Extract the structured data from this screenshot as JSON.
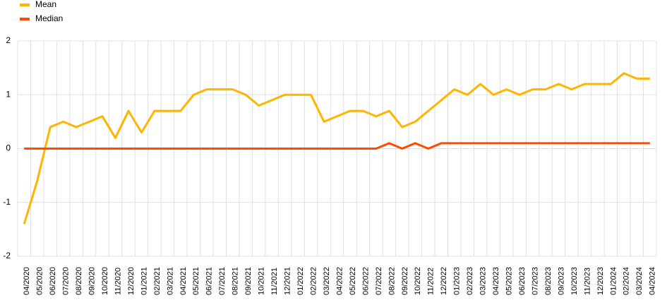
{
  "chart_data": {
    "type": "line",
    "categories": [
      "04/2020",
      "05/2020",
      "06/2020",
      "07/2020",
      "08/2020",
      "09/2020",
      "10/2020",
      "11/2020",
      "12/2020",
      "01/2021",
      "02/2021",
      "03/2021",
      "04/2021",
      "05/2021",
      "06/2021",
      "07/2021",
      "08/2021",
      "09/2021",
      "10/2021",
      "11/2021",
      "12/2021",
      "01/2022",
      "02/2022",
      "03/2022",
      "04/2022",
      "05/2022",
      "06/2022",
      "07/2022",
      "08/2022",
      "09/2022",
      "10/2022",
      "11/2022",
      "12/2022",
      "01/2023",
      "02/2023",
      "03/2023",
      "04/2023",
      "05/2023",
      "06/2023",
      "07/2023",
      "08/2023",
      "09/2023",
      "10/2023",
      "11/2023",
      "12/2023",
      "01/2024",
      "02/2024",
      "03/2024",
      "04/2024"
    ],
    "series": [
      {
        "name": "Mean",
        "color": "#ffb400",
        "values": [
          -1.4,
          -0.6,
          0.4,
          0.5,
          0.4,
          0.5,
          0.6,
          0.2,
          0.7,
          0.3,
          0.7,
          0.7,
          0.7,
          1.0,
          1.1,
          1.1,
          1.1,
          1.0,
          0.8,
          0.9,
          1.0,
          1.0,
          1.0,
          0.5,
          0.6,
          0.7,
          0.7,
          0.6,
          0.7,
          0.4,
          0.5,
          0.7,
          0.9,
          1.1,
          1.0,
          1.2,
          1.0,
          1.1,
          1.0,
          1.1,
          1.1,
          1.2,
          1.1,
          1.2,
          1.2,
          1.2,
          1.4,
          1.3,
          1.3
        ]
      },
      {
        "name": "Median",
        "color": "#ff4b00",
        "values": [
          0,
          0,
          0,
          0,
          0,
          0,
          0,
          0,
          0,
          0,
          0,
          0,
          0,
          0,
          0,
          0,
          0,
          0,
          0,
          0,
          0,
          0,
          0,
          0,
          0,
          0,
          0,
          0,
          0.1,
          0,
          0.1,
          0,
          0.1,
          0.1,
          0.1,
          0.1,
          0.1,
          0.1,
          0.1,
          0.1,
          0.1,
          0.1,
          0.1,
          0.1,
          0.1,
          0.1,
          0.1,
          0.1,
          0.1
        ]
      }
    ],
    "ylim": [
      -2,
      2
    ],
    "yticks": [
      -2,
      -1,
      0,
      1,
      2
    ],
    "grid": true
  }
}
